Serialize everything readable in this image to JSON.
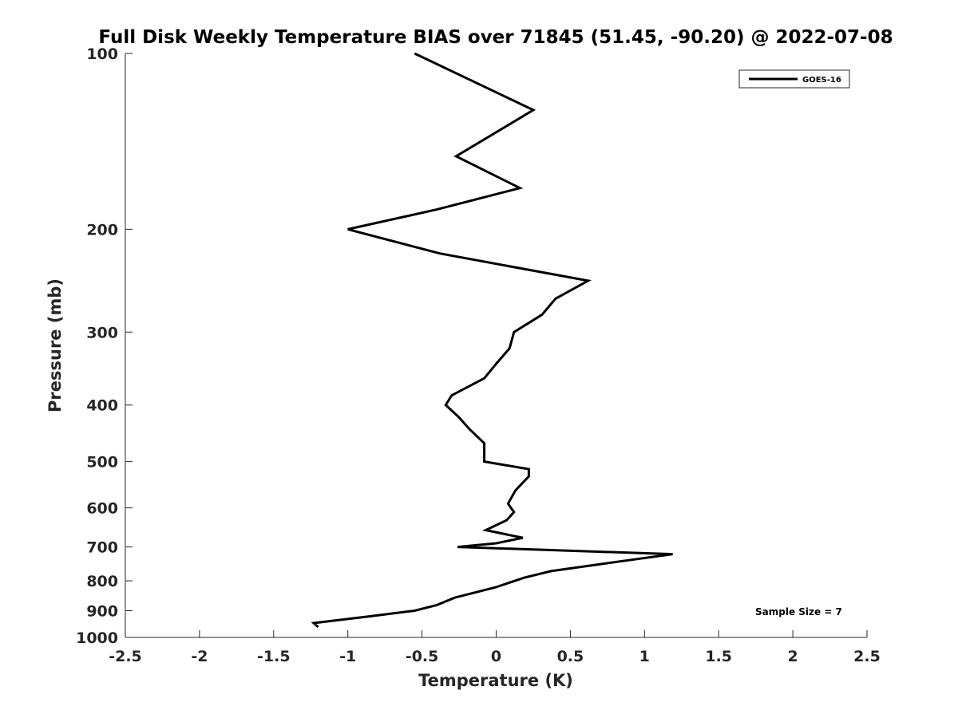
{
  "chart_data": {
    "type": "line",
    "title": "Full Disk Weekly Temperature BIAS over 71845 (51.45, -90.20) @ 2022-07-08",
    "xlabel": "Temperature (K)",
    "ylabel": "Pressure (mb)",
    "xlim": [
      -2.5,
      2.5
    ],
    "ylim": [
      100,
      1000
    ],
    "y_scale": "log",
    "y_reversed": true,
    "xticks": [
      -2.5,
      -2,
      -1.5,
      -1,
      -0.5,
      0,
      0.5,
      1,
      1.5,
      2,
      2.5
    ],
    "xtick_labels": [
      "-2.5",
      "-2",
      "-1.5",
      "-1",
      "-0.5",
      "0",
      "0.5",
      "1",
      "1.5",
      "2",
      "2.5"
    ],
    "yticks": [
      100,
      200,
      300,
      400,
      500,
      600,
      700,
      800,
      900,
      1000
    ],
    "ytick_labels": [
      "100",
      "200",
      "300",
      "400",
      "500",
      "600",
      "700",
      "800",
      "900",
      "1000"
    ],
    "grid": false,
    "legend_position": "top-right",
    "series": [
      {
        "name": "GOES-16",
        "color": "#000000",
        "x": [
          -0.55,
          0.25,
          -0.27,
          0.16,
          -0.4,
          -1.0,
          -0.38,
          0.62,
          0.4,
          0.31,
          0.12,
          0.09,
          0.0,
          -0.08,
          -0.3,
          -0.34,
          -0.25,
          -0.18,
          -0.08,
          -0.08,
          -0.08,
          0.22,
          0.22,
          0.13,
          0.08,
          0.12,
          0.07,
          -0.07,
          0.18,
          0.0,
          -0.26,
          1.19,
          0.85,
          0.37,
          0.19,
          0.0,
          -0.28,
          -0.4,
          -0.55,
          -0.85,
          -1.23,
          -1.2
        ],
        "y": [
          100,
          125,
          150,
          170,
          185,
          200,
          220,
          245,
          263,
          280,
          300,
          320,
          340,
          360,
          385,
          400,
          420,
          440,
          465,
          480,
          500,
          515,
          530,
          560,
          590,
          610,
          630,
          655,
          675,
          690,
          700,
          720,
          740,
          770,
          790,
          820,
          855,
          880,
          900,
          920,
          945,
          960
        ]
      }
    ],
    "annotations": [
      "Sample Size = 7"
    ]
  }
}
